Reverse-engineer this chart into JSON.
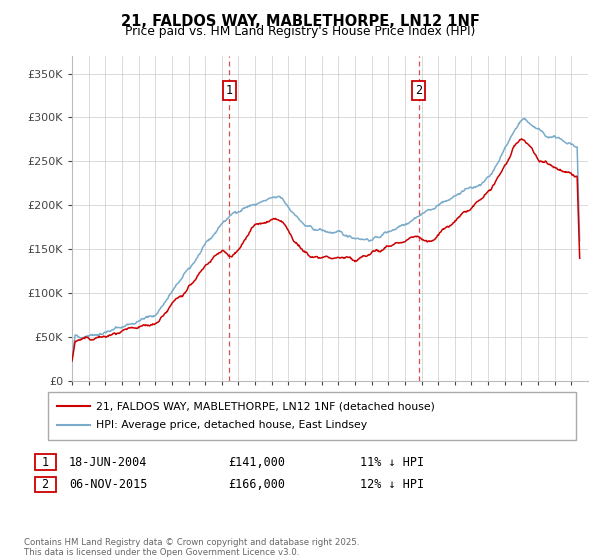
{
  "title": "21, FALDOS WAY, MABLETHORPE, LN12 1NF",
  "subtitle": "Price paid vs. HM Land Registry's House Price Index (HPI)",
  "legend_line1": "21, FALDOS WAY, MABLETHORPE, LN12 1NF (detached house)",
  "legend_line2": "HPI: Average price, detached house, East Lindsey",
  "transaction1_date": "18-JUN-2004",
  "transaction1_price": "£141,000",
  "transaction1_hpi": "11% ↓ HPI",
  "transaction1_year": 2004.46,
  "transaction2_date": "06-NOV-2015",
  "transaction2_price": "£166,000",
  "transaction2_hpi": "12% ↓ HPI",
  "transaction2_year": 2015.84,
  "footer": "Contains HM Land Registry data © Crown copyright and database right 2025.\nThis data is licensed under the Open Government Licence v3.0.",
  "red_color": "#cc0000",
  "blue_color": "#7aabca",
  "dashed_color": "#cc0000",
  "background_color": "#ffffff",
  "grid_color": "#cccccc",
  "ylim_min": 0,
  "ylim_max": 370000,
  "xmin": 1995,
  "xmax": 2026
}
